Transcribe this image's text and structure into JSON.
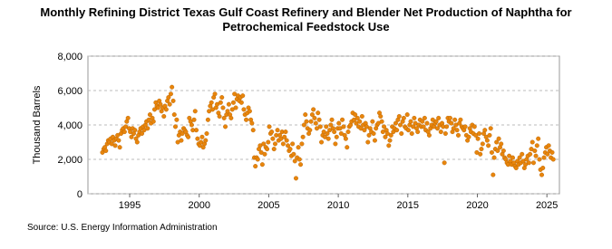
{
  "chart_data": {
    "type": "scatter",
    "title": "Monthly Refining District Texas Gulf Coast Refinery and Blender Net Production of Naphtha for Petrochemical Feedstock Use",
    "ylabel": "Thousand Barrels",
    "source": "Source: U.S. Energy Information Administration",
    "xlim": [
      1992,
      2025.9
    ],
    "xticks": [
      1995,
      2000,
      2005,
      2010,
      2015,
      2020,
      2025
    ],
    "ylim": [
      0,
      8000
    ],
    "yticks": [
      0,
      {
        "value": 2000,
        "label": "2,000"
      },
      {
        "value": 4000,
        "label": "4,000"
      },
      {
        "value": 6000,
        "label": "6,000"
      },
      {
        "value": 8000,
        "label": "8,000"
      }
    ],
    "grid": true,
    "color": "#e8850c",
    "x": [
      1993.04,
      1993.13,
      1993.21,
      1993.29,
      1993.38,
      1993.46,
      1993.54,
      1993.63,
      1993.71,
      1993.79,
      1993.88,
      1993.96,
      1994.04,
      1994.13,
      1994.21,
      1994.29,
      1994.38,
      1994.46,
      1994.54,
      1994.63,
      1994.71,
      1994.79,
      1994.88,
      1994.96,
      1995.04,
      1995.13,
      1995.21,
      1995.29,
      1995.38,
      1995.46,
      1995.54,
      1995.63,
      1995.71,
      1995.79,
      1995.88,
      1995.96,
      1996.04,
      1996.13,
      1996.21,
      1996.29,
      1996.38,
      1996.46,
      1996.54,
      1996.63,
      1996.71,
      1996.79,
      1996.88,
      1996.96,
      1997.04,
      1997.13,
      1997.21,
      1997.29,
      1997.38,
      1997.46,
      1997.54,
      1997.63,
      1997.71,
      1997.79,
      1997.88,
      1997.96,
      1998.04,
      1998.13,
      1998.21,
      1998.29,
      1998.38,
      1998.46,
      1998.54,
      1998.63,
      1998.71,
      1998.79,
      1998.88,
      1998.96,
      1999.04,
      1999.13,
      1999.21,
      1999.29,
      1999.38,
      1999.46,
      1999.54,
      1999.63,
      1999.71,
      1999.79,
      1999.88,
      1999.96,
      2000.04,
      2000.13,
      2000.21,
      2000.29,
      2000.38,
      2000.46,
      2000.54,
      2000.63,
      2000.71,
      2000.79,
      2000.88,
      2000.96,
      2001.04,
      2001.13,
      2001.21,
      2001.29,
      2001.38,
      2001.46,
      2001.54,
      2001.63,
      2001.71,
      2001.79,
      2001.88,
      2001.96,
      2002.04,
      2002.13,
      2002.21,
      2002.29,
      2002.38,
      2002.46,
      2002.54,
      2002.63,
      2002.71,
      2002.79,
      2002.88,
      2002.96,
      2003.04,
      2003.13,
      2003.21,
      2003.29,
      2003.38,
      2003.46,
      2003.54,
      2003.63,
      2003.71,
      2003.79,
      2003.88,
      2003.96,
      2004.04,
      2004.13,
      2004.21,
      2004.29,
      2004.38,
      2004.46,
      2004.54,
      2004.63,
      2004.71,
      2004.79,
      2004.88,
      2004.96,
      2005.04,
      2005.13,
      2005.21,
      2005.29,
      2005.38,
      2005.46,
      2005.54,
      2005.63,
      2005.71,
      2005.79,
      2005.88,
      2005.96,
      2006.04,
      2006.13,
      2006.21,
      2006.29,
      2006.38,
      2006.46,
      2006.54,
      2006.63,
      2006.71,
      2006.79,
      2006.88,
      2006.96,
      2007.04,
      2007.13,
      2007.21,
      2007.29,
      2007.38,
      2007.46,
      2007.54,
      2007.63,
      2007.71,
      2007.79,
      2007.88,
      2007.96,
      2008.04,
      2008.13,
      2008.21,
      2008.29,
      2008.38,
      2008.46,
      2008.54,
      2008.63,
      2008.71,
      2008.79,
      2008.88,
      2008.96,
      2009.04,
      2009.13,
      2009.21,
      2009.29,
      2009.38,
      2009.46,
      2009.54,
      2009.63,
      2009.71,
      2009.79,
      2009.88,
      2009.96,
      2010.04,
      2010.13,
      2010.21,
      2010.29,
      2010.38,
      2010.46,
      2010.54,
      2010.63,
      2010.71,
      2010.79,
      2010.88,
      2010.96,
      2011.04,
      2011.13,
      2011.21,
      2011.29,
      2011.38,
      2011.46,
      2011.54,
      2011.63,
      2011.71,
      2011.79,
      2011.88,
      2011.96,
      2012.04,
      2012.13,
      2012.21,
      2012.29,
      2012.38,
      2012.46,
      2012.54,
      2012.63,
      2012.71,
      2012.79,
      2012.88,
      2012.96,
      2013.04,
      2013.13,
      2013.21,
      2013.29,
      2013.38,
      2013.46,
      2013.54,
      2013.63,
      2013.71,
      2013.79,
      2013.88,
      2013.96,
      2014.04,
      2014.13,
      2014.21,
      2014.29,
      2014.38,
      2014.46,
      2014.54,
      2014.63,
      2014.71,
      2014.79,
      2014.88,
      2014.96,
      2015.04,
      2015.13,
      2015.21,
      2015.29,
      2015.38,
      2015.46,
      2015.54,
      2015.63,
      2015.71,
      2015.79,
      2015.88,
      2015.96,
      2016.04,
      2016.13,
      2016.21,
      2016.29,
      2016.38,
      2016.46,
      2016.54,
      2016.63,
      2016.71,
      2016.79,
      2016.88,
      2016.96,
      2017.04,
      2017.13,
      2017.21,
      2017.29,
      2017.38,
      2017.46,
      2017.54,
      2017.63,
      2017.71,
      2017.79,
      2017.88,
      2017.96,
      2018.04,
      2018.13,
      2018.21,
      2018.29,
      2018.38,
      2018.46,
      2018.54,
      2018.63,
      2018.71,
      2018.79,
      2018.88,
      2018.96,
      2019.04,
      2019.13,
      2019.21,
      2019.29,
      2019.38,
      2019.46,
      2019.54,
      2019.63,
      2019.71,
      2019.79,
      2019.88,
      2019.96,
      2020.04,
      2020.13,
      2020.21,
      2020.29,
      2020.38,
      2020.46,
      2020.54,
      2020.63,
      2020.71,
      2020.79,
      2020.88,
      2020.96,
      2021.04,
      2021.13,
      2021.21,
      2021.29,
      2021.38,
      2021.46,
      2021.54,
      2021.63,
      2021.71,
      2021.79,
      2021.88,
      2021.96,
      2022.04,
      2022.13,
      2022.21,
      2022.29,
      2022.38,
      2022.46,
      2022.54,
      2022.63,
      2022.71,
      2022.79,
      2022.88,
      2022.96,
      2023.04,
      2023.13,
      2023.21,
      2023.29,
      2023.38,
      2023.46,
      2023.54,
      2023.63,
      2023.71,
      2023.79,
      2023.88,
      2023.96,
      2024.04,
      2024.13,
      2024.21,
      2024.29,
      2024.38,
      2024.46,
      2024.54,
      2024.63,
      2024.71,
      2024.79,
      2024.88,
      2024.96,
      2025.04,
      2025.13,
      2025.21,
      2025.29,
      2025.38,
      2025.46
    ],
    "values": [
      2400,
      2600,
      2700,
      2500,
      2900,
      3100,
      3000,
      3200,
      2900,
      3300,
      3100,
      2800,
      3200,
      3400,
      3100,
      2700,
      3500,
      3700,
      3800,
      3600,
      3900,
      4200,
      4400,
      3800,
      3600,
      3300,
      3800,
      3500,
      3700,
      3200,
      3000,
      3400,
      3600,
      3800,
      3500,
      3900,
      3700,
      4000,
      4200,
      3800,
      4300,
      4600,
      4100,
      4400,
      4200,
      4900,
      5300,
      5100,
      5000,
      5400,
      5200,
      4800,
      5000,
      4500,
      5100,
      4900,
      5400,
      5600,
      5200,
      5800,
      6200,
      5400,
      4600,
      3900,
      4300,
      3000,
      3400,
      3600,
      3100,
      3500,
      3800,
      3700,
      3600,
      3400,
      3300,
      4400,
      4200,
      4000,
      3700,
      4300,
      4800,
      3700,
      3200,
      2900,
      2800,
      3000,
      3300,
      2700,
      2900,
      3100,
      3500,
      4300,
      4800,
      5100,
      5300,
      4900,
      5600,
      5800,
      5000,
      5200,
      4700,
      4500,
      5300,
      5600,
      5000,
      4400,
      3900,
      4600,
      4800,
      5200,
      4600,
      4400,
      4900,
      5300,
      5800,
      5000,
      5500,
      5700,
      5400,
      5600,
      5300,
      5700,
      4900,
      4600,
      4300,
      4700,
      5000,
      4800,
      4300,
      4100,
      3700,
      2100,
      1600,
      2100,
      2000,
      2600,
      2800,
      2400,
      1700,
      2900,
      2300,
      2700,
      2600,
      3000,
      3900,
      3500,
      3600,
      3200,
      2600,
      2900,
      3400,
      3700,
      3100,
      3400,
      3200,
      3600,
      2900,
      3300,
      3600,
      3100,
      2800,
      2500,
      2600,
      2200,
      2900,
      2300,
      1900,
      900,
      2100,
      2700,
      2000,
      1700,
      2900,
      3300,
      4000,
      4600,
      4200,
      3800,
      3500,
      3700,
      4200,
      4600,
      4900,
      4400,
      4100,
      3800,
      4700,
      4300,
      3900,
      3000,
      3400,
      3600,
      3300,
      3900,
      3500,
      3200,
      3700,
      4000,
      4300,
      3800,
      3600,
      2900,
      3300,
      3800,
      4100,
      3800,
      3500,
      4300,
      3900,
      3400,
      3200,
      2700,
      3600,
      3900,
      4000,
      4200,
      4700,
      4300,
      4600,
      4100,
      4400,
      3900,
      4200,
      3800,
      4500,
      4000,
      3700,
      4100,
      3900,
      3000,
      3400,
      3800,
      3600,
      4200,
      3500,
      3100,
      3800,
      4000,
      4100,
      4700,
      4500,
      4200,
      3600,
      3900,
      3300,
      3700,
      3500,
      2800,
      3100,
      3400,
      3900,
      3600,
      3800,
      4100,
      3700,
      4300,
      4500,
      4000,
      3500,
      4200,
      4400,
      3900,
      3800,
      4600,
      3700,
      4000,
      4200,
      3500,
      3900,
      4400,
      4100,
      3800,
      3600,
      4000,
      4300,
      3900,
      4200,
      3900,
      4400,
      3700,
      4100,
      3600,
      3400,
      3800,
      4000,
      4300,
      3900,
      4100,
      4200,
      3800,
      4400,
      4000,
      3600,
      4100,
      3900,
      1800,
      3500,
      3900,
      4400,
      4200,
      4400,
      4100,
      3600,
      3800,
      4300,
      4000,
      3700,
      3400,
      4100,
      4300,
      3900,
      3800,
      3700,
      3900,
      3400,
      3100,
      3300,
      3800,
      3600,
      4000,
      3500,
      3900,
      3400,
      2400,
      3200,
      3500,
      2300,
      2600,
      2900,
      3500,
      3700,
      3300,
      3100,
      2800,
      3400,
      3800,
      2400,
      1100,
      2100,
      2600,
      3000,
      2500,
      3200,
      2700,
      2900,
      2300,
      2500,
      2100,
      2000,
      1800,
      1700,
      2200,
      1900,
      1700,
      2100,
      1800,
      1600,
      1500,
      1900,
      1700,
      2100,
      1800,
      2300,
      1900,
      1500,
      1700,
      2000,
      2200,
      1800,
      2300,
      2600,
      3000,
      1800,
      2500,
      2200,
      2800,
      3200,
      2000,
      1400,
      1100,
      1500,
      2100,
      2400,
      2700,
      2300,
      2800,
      2500,
      2100,
      2400,
      2000
    ]
  }
}
